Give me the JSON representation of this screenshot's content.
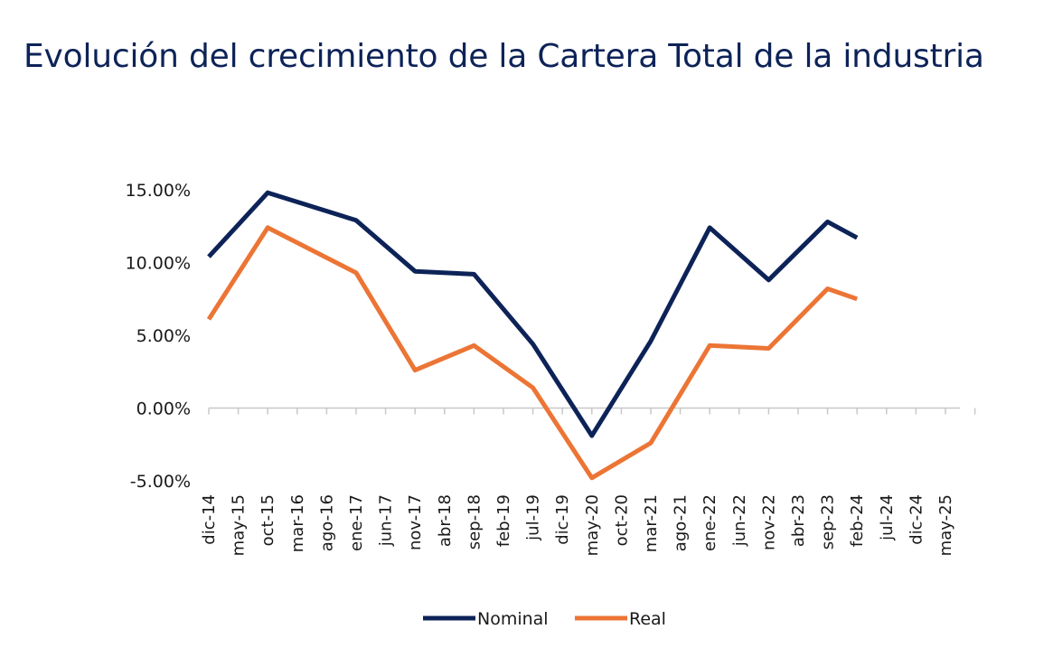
{
  "chart_data": {
    "type": "line",
    "title": "Evolución del crecimiento de la Cartera Total de la industria",
    "xlabel": "",
    "ylabel": "",
    "ylim": [
      -5,
      15
    ],
    "yticks": [
      15,
      10,
      5,
      0,
      -5
    ],
    "ytick_labels": [
      "15.00%",
      "10.00%",
      "5.00%",
      "0.00%",
      "-5.00%"
    ],
    "categories": [
      "dic-14",
      "may-15",
      "oct-15",
      "mar-16",
      "ago-16",
      "ene-17",
      "jun-17",
      "nov-17",
      "abr-18",
      "sep-18",
      "feb-19",
      "jul-19",
      "dic-19",
      "may-20",
      "oct-20",
      "mar-21",
      "ago-21",
      "ene-22",
      "jun-22",
      "nov-22",
      "abr-23",
      "sep-23",
      "feb-24",
      "jul-24",
      "dic-24",
      "may-25"
    ],
    "series": [
      {
        "name": "Nominal",
        "color": "#0d2358",
        "points": [
          [
            0,
            10.4
          ],
          [
            2,
            14.8
          ],
          [
            5,
            12.9
          ],
          [
            7,
            9.4
          ],
          [
            9,
            9.2
          ],
          [
            11,
            4.4
          ],
          [
            13,
            -1.9
          ],
          [
            15,
            4.6
          ],
          [
            17,
            12.4
          ],
          [
            19,
            8.8
          ],
          [
            21,
            12.8
          ],
          [
            22,
            11.7
          ]
        ]
      },
      {
        "name": "Real",
        "color": "#ec7535",
        "points": [
          [
            0,
            6.1
          ],
          [
            2,
            12.4
          ],
          [
            5,
            9.3
          ],
          [
            7,
            2.6
          ],
          [
            9,
            4.3
          ],
          [
            11,
            1.4
          ],
          [
            13,
            -4.8
          ],
          [
            15,
            -2.4
          ],
          [
            17,
            4.3
          ],
          [
            19,
            4.1
          ],
          [
            21,
            8.2
          ],
          [
            22,
            7.5
          ]
        ]
      }
    ],
    "legend_position": "bottom-center"
  }
}
